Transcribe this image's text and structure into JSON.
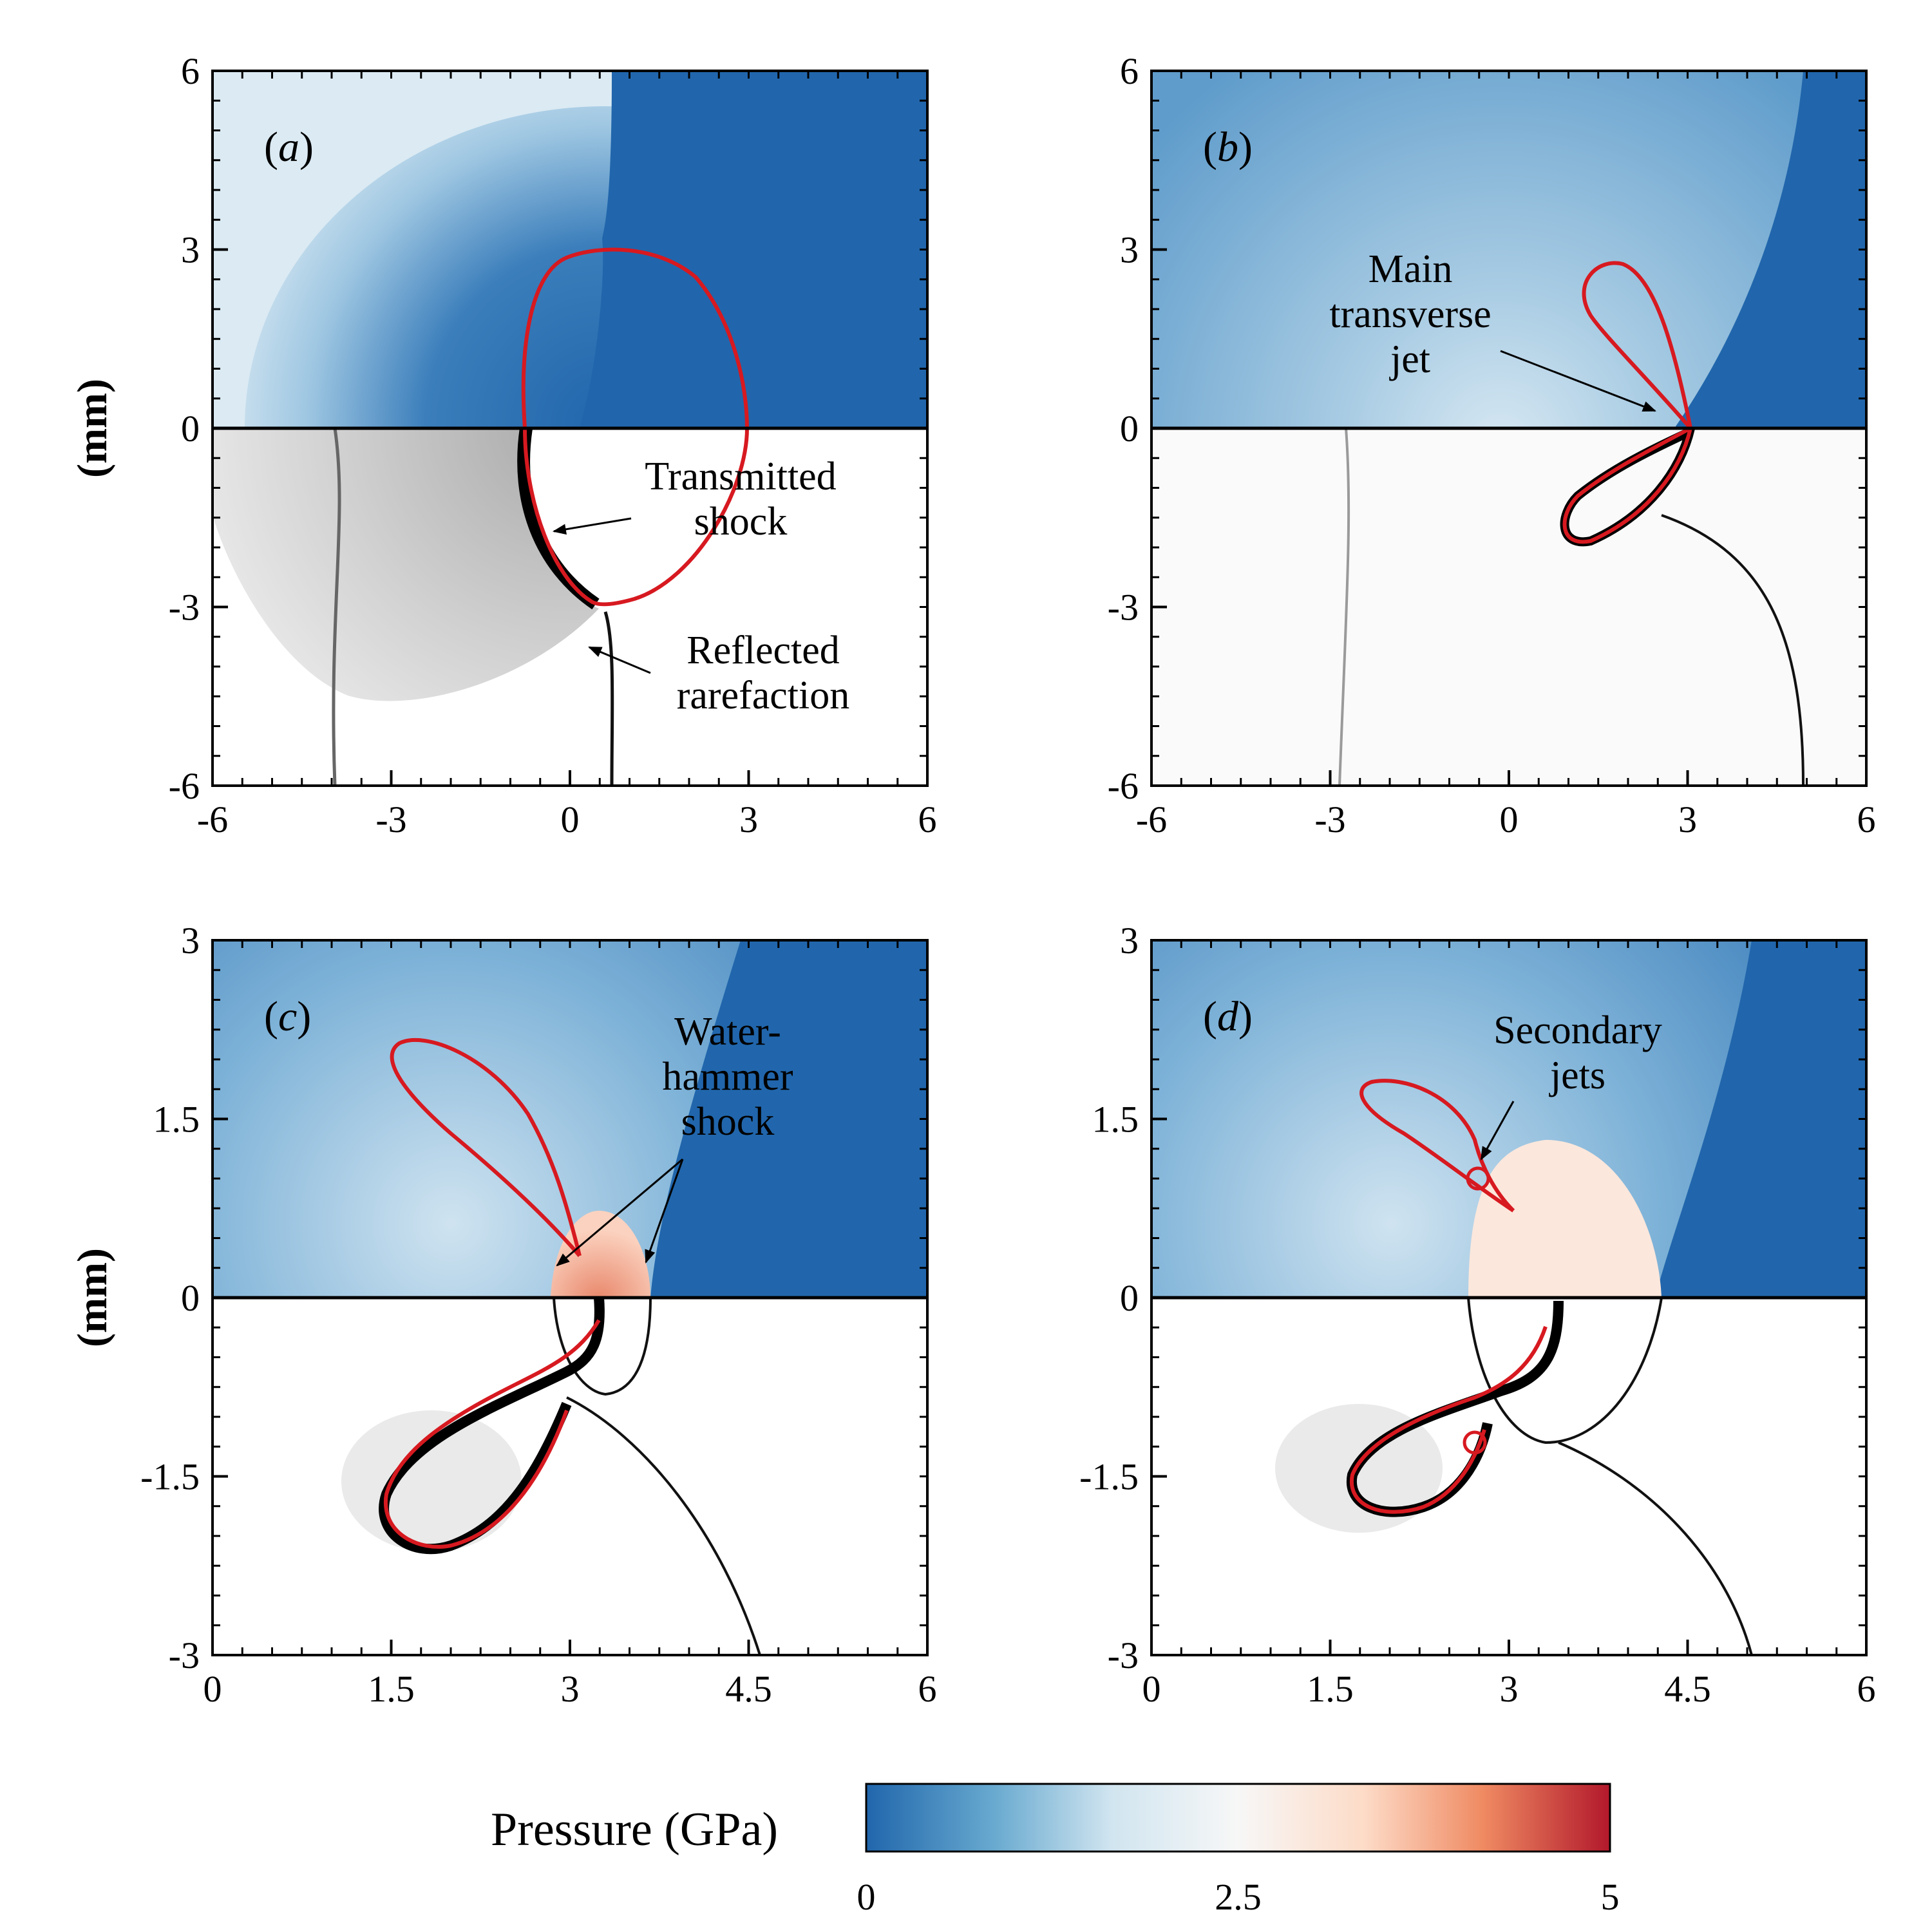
{
  "chart_data": {
    "type": "contour",
    "colorbar": {
      "title": "Pressure (GPa)",
      "min": 0,
      "max": 5,
      "ticks": [
        "0",
        "2.5",
        "5"
      ],
      "colors": [
        "#2166ac",
        "#67a9cf",
        "#d1e5f0",
        "#f7f7f7",
        "#fddbc7",
        "#ef8a62",
        "#b2182b"
      ]
    },
    "y_axis_label": "(mm)",
    "panels": [
      {
        "id": "a",
        "label_letter": "a",
        "xlim": [
          -6,
          6
        ],
        "ylim": [
          -6,
          6
        ],
        "xticks": [
          "-6",
          "-3",
          "0",
          "3",
          "6"
        ],
        "yticks": [
          "6",
          "3",
          "0",
          "-3",
          "-6"
        ],
        "annotations": [
          {
            "lines": [
              "Transmitted",
              "shock"
            ]
          },
          {
            "lines": [
              "Reflected",
              "rarefaction"
            ]
          }
        ]
      },
      {
        "id": "b",
        "label_letter": "b",
        "xlim": [
          -6,
          6
        ],
        "ylim": [
          -6,
          6
        ],
        "xticks": [
          "-6",
          "-3",
          "0",
          "3",
          "6"
        ],
        "yticks": [
          "6",
          "3",
          "0",
          "-3",
          "-6"
        ],
        "annotations": [
          {
            "lines": [
              "Main",
              "transverse",
              "jet"
            ]
          }
        ]
      },
      {
        "id": "c",
        "label_letter": "c",
        "xlim": [
          0,
          6
        ],
        "ylim": [
          -3,
          3
        ],
        "xticks": [
          "0",
          "1.5",
          "3",
          "4.5",
          "6"
        ],
        "yticks": [
          "3",
          "1.5",
          "0",
          "-1.5",
          "-3"
        ],
        "annotations": [
          {
            "lines": [
              "Water-",
              "hammer",
              "shock"
            ]
          }
        ]
      },
      {
        "id": "d",
        "label_letter": "d",
        "xlim": [
          0,
          6
        ],
        "ylim": [
          -3,
          3
        ],
        "xticks": [
          "0",
          "1.5",
          "3",
          "4.5",
          "6"
        ],
        "yticks": [
          "3",
          "1.5",
          "0",
          "-1.5",
          "-3"
        ],
        "annotations": [
          {
            "lines": [
              "Secondary",
              "jets"
            ]
          }
        ]
      }
    ]
  }
}
